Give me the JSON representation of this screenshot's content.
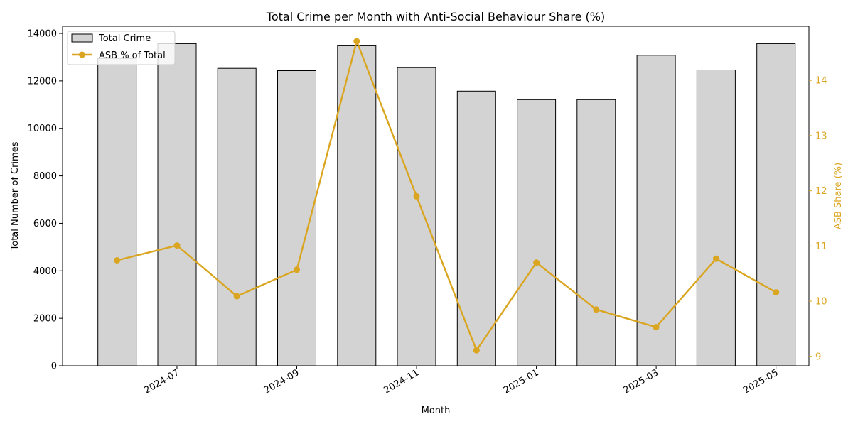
{
  "chart_data": {
    "type": "bar+line",
    "title": "Total Crime per Month with Anti-Social Behaviour Share (%)",
    "xlabel": "Month",
    "ylabel_left": "Total Number of Crimes",
    "ylabel_right": "ASB Share (%)",
    "x": [
      "2024-06",
      "2024-07",
      "2024-08",
      "2024-09",
      "2024-10",
      "2024-11",
      "2024-12",
      "2025-01",
      "2025-02",
      "2025-03",
      "2025-04",
      "2025-05"
    ],
    "x_tick_labels": [
      "2024-07",
      "2024-09",
      "2024-11",
      "2025-01",
      "2025-03",
      "2025-05"
    ],
    "series": [
      {
        "name": "Total Crime",
        "type": "bar",
        "axis": "left",
        "color": "#d3d3d3",
        "edgecolor": "#000000",
        "values": [
          12950,
          13570,
          12530,
          12430,
          13480,
          12560,
          11570,
          11210,
          11210,
          13080,
          12460,
          13570
        ]
      },
      {
        "name": "ASB % of Total",
        "type": "line",
        "axis": "right",
        "color": "#daa520",
        "values": [
          10.74,
          11.01,
          10.09,
          10.57,
          14.71,
          11.9,
          9.11,
          10.7,
          9.85,
          9.53,
          10.77,
          10.16
        ]
      }
    ],
    "ylim_left": [
      0,
      14300
    ],
    "yticks_left": [
      0,
      2000,
      4000,
      6000,
      8000,
      10000,
      12000,
      14000
    ],
    "ylim_right": [
      8.83,
      14.98
    ],
    "yticks_right": [
      9,
      10,
      11,
      12,
      13,
      14
    ],
    "legend_position": "top-left",
    "grid": false
  }
}
